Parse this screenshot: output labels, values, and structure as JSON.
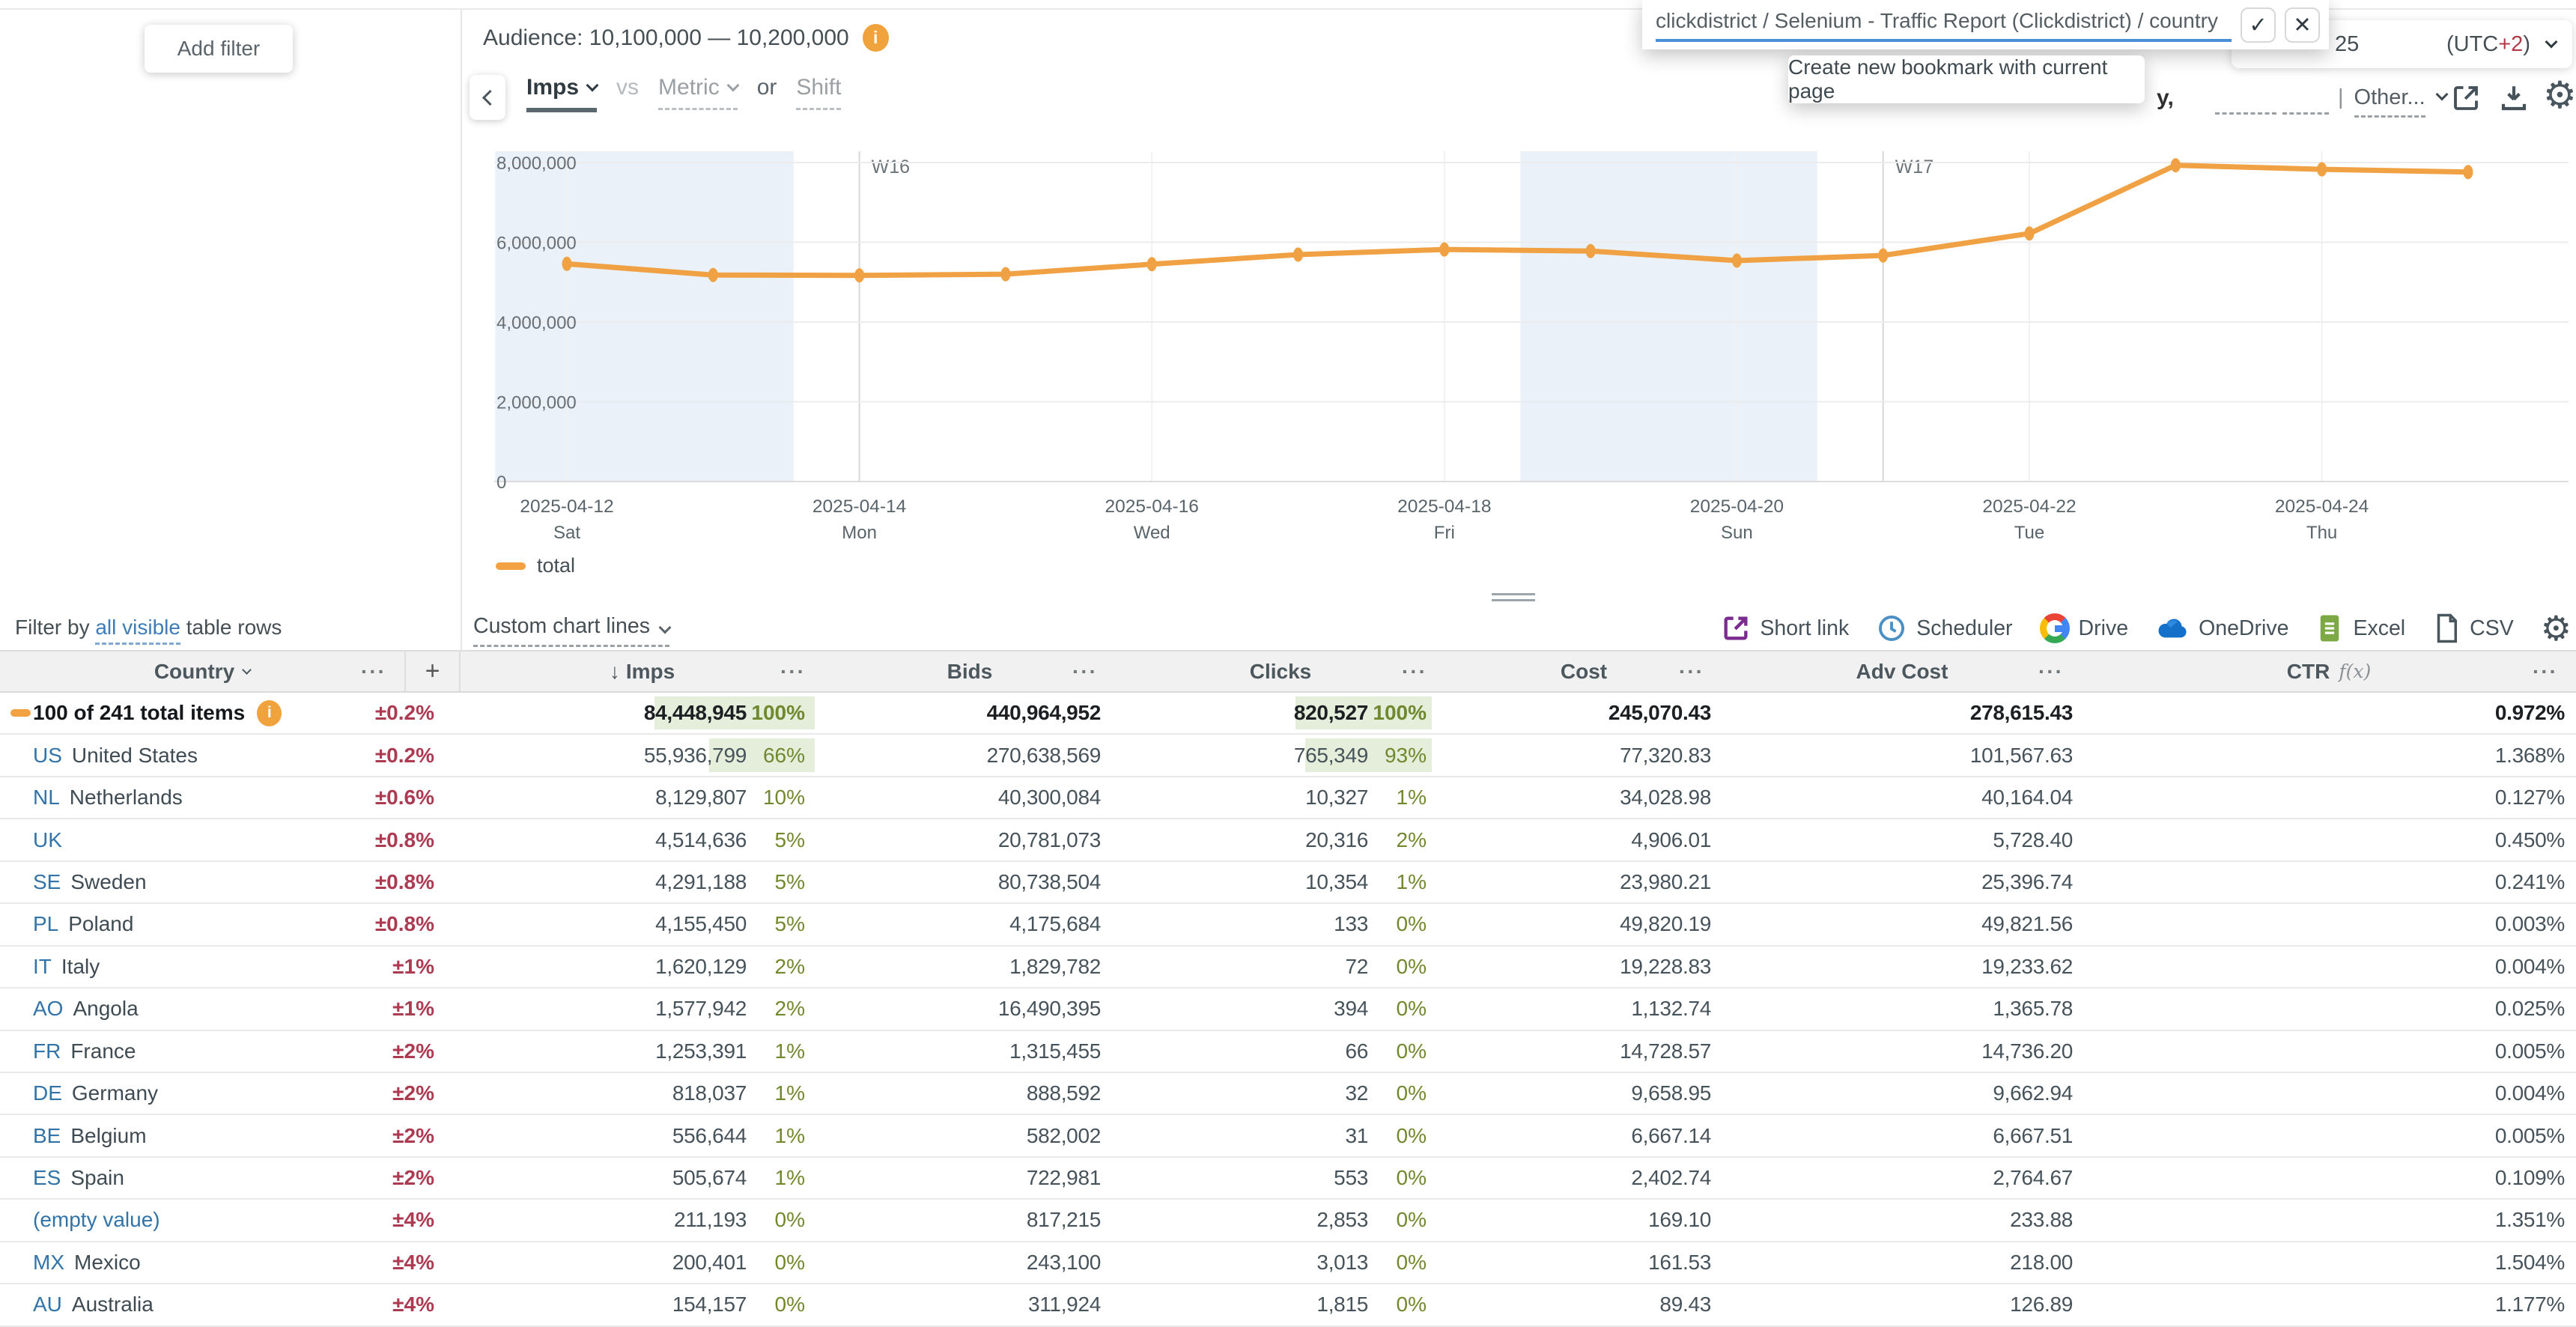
{
  "filter_panel": {
    "add_filter": "Add filter"
  },
  "audience": {
    "label": "Audience: 10,100,000 — 10,200,000",
    "info_icon": "i"
  },
  "metric_bar": {
    "metric": "Imps",
    "vs": "vs",
    "metric_select": "Metric",
    "or": "or",
    "shift": "Shift"
  },
  "bookmark_popup": {
    "value": "clickdistrict / Selenium - Traffic Report (Clickdistrict) / country",
    "confirm_icon": "✓",
    "cancel_icon": "✕",
    "menu_item": "Create new bookmark with current page"
  },
  "datetime_bar": {
    "day": "25",
    "tz_prefix": "(UTC ",
    "tz_offset": "+2",
    "tz_suffix": ")",
    "hidden_fragment": "y,",
    "other_separator": "|",
    "other_label": "Other...",
    "gear_icon": "⚙"
  },
  "chart_data": {
    "type": "line",
    "x": [
      "2025-04-12",
      "2025-04-13",
      "2025-04-14",
      "2025-04-15",
      "2025-04-16",
      "2025-04-17",
      "2025-04-18",
      "2025-04-19",
      "2025-04-20",
      "2025-04-21",
      "2025-04-22",
      "2025-04-23",
      "2025-04-24",
      "2025-04-25"
    ],
    "series": [
      {
        "name": "total",
        "color": "#F0A144",
        "values": [
          5460000,
          5180000,
          5170000,
          5200000,
          5450000,
          5690000,
          5820000,
          5780000,
          5540000,
          5670000,
          6220000,
          7930000,
          7830000,
          7760000
        ]
      }
    ],
    "ylim": [
      0,
      8000000
    ],
    "y_ticks": [
      {
        "label": "0",
        "value": 0
      },
      {
        "label": "2,000,000",
        "value": 2000000
      },
      {
        "label": "4,000,000",
        "value": 4000000
      },
      {
        "label": "6,000,000",
        "value": 6000000
      },
      {
        "label": "8,000,000",
        "value": 8000000
      }
    ],
    "x_ticks": [
      {
        "index": 0,
        "date": "2025-04-12",
        "day": "Sat"
      },
      {
        "index": 2,
        "date": "2025-04-14",
        "day": "Mon"
      },
      {
        "index": 4,
        "date": "2025-04-16",
        "day": "Wed"
      },
      {
        "index": 6,
        "date": "2025-04-18",
        "day": "Fri"
      },
      {
        "index": 8,
        "date": "2025-04-20",
        "day": "Sun"
      },
      {
        "index": 10,
        "date": "2025-04-22",
        "day": "Tue"
      },
      {
        "index": 12,
        "date": "2025-04-24",
        "day": "Thu"
      }
    ],
    "week_markers": [
      {
        "index": 2,
        "label": "W16"
      },
      {
        "index": 9,
        "label": "W17"
      }
    ],
    "weekend_bands": [
      [
        -0.49,
        1.55
      ],
      [
        6.52,
        8.55
      ]
    ],
    "legend": [
      "total"
    ],
    "grid": true,
    "legend_position": "bottom-left"
  },
  "toolbar": {
    "filter_prefix": "Filter by ",
    "filter_link": "all visible",
    "filter_suffix": " table rows",
    "custom_chart_lines": "Custom chart lines",
    "export": [
      {
        "label": "Short link",
        "icon": "short-link-icon"
      },
      {
        "label": "Scheduler",
        "icon": "clock-icon"
      },
      {
        "label": "Drive",
        "icon": "google-drive-icon"
      },
      {
        "label": "OneDrive",
        "icon": "onedrive-cloud-icon"
      },
      {
        "label": "Excel",
        "icon": "excel-file-icon"
      },
      {
        "label": "CSV",
        "icon": "csv-file-icon"
      }
    ],
    "gear_icon": "⚙"
  },
  "table": {
    "columns": {
      "country": "Country",
      "plus": "+",
      "sort": "↓",
      "imps": "Imps",
      "bids": "Bids",
      "clicks": "Clicks",
      "cost": "Cost",
      "adv": "Adv Cost",
      "ctr": "CTR",
      "fx": "f(x)",
      "menu": "···"
    },
    "rows": [
      {
        "total": true,
        "info": true,
        "code": "",
        "name": "100 of 241 total items",
        "err": "±0.2%",
        "imps": "84,448,945",
        "imps_pct": "100%",
        "imps_bar": 100,
        "bids": "440,964,952",
        "clicks": "820,527",
        "clicks_pct": "100%",
        "clicks_bar": 100,
        "cost": "245,070.43",
        "adv_cost": "278,615.43",
        "ctr": "0.972%"
      },
      {
        "code": "US",
        "name": "United States",
        "err": "±0.2%",
        "imps": "55,936,799",
        "imps_pct": "66%",
        "imps_bar": 66,
        "bids": "270,638,569",
        "clicks": "765,349",
        "clicks_pct": "93%",
        "clicks_bar": 93,
        "cost": "77,320.83",
        "adv_cost": "101,567.63",
        "ctr": "1.368%"
      },
      {
        "code": "NL",
        "name": "Netherlands",
        "err": "±0.6%",
        "imps": "8,129,807",
        "imps_pct": "10%",
        "imps_bar": 0,
        "bids": "40,300,084",
        "clicks": "10,327",
        "clicks_pct": "1%",
        "clicks_bar": 0,
        "cost": "34,028.98",
        "adv_cost": "40,164.04",
        "ctr": "0.127%"
      },
      {
        "code": "UK",
        "name": "",
        "err": "±0.8%",
        "imps": "4,514,636",
        "imps_pct": "5%",
        "imps_bar": 0,
        "bids": "20,781,073",
        "clicks": "20,316",
        "clicks_pct": "2%",
        "clicks_bar": 0,
        "cost": "4,906.01",
        "adv_cost": "5,728.40",
        "ctr": "0.450%"
      },
      {
        "code": "SE",
        "name": "Sweden",
        "err": "±0.8%",
        "imps": "4,291,188",
        "imps_pct": "5%",
        "imps_bar": 0,
        "bids": "80,738,504",
        "clicks": "10,354",
        "clicks_pct": "1%",
        "clicks_bar": 0,
        "cost": "23,980.21",
        "adv_cost": "25,396.74",
        "ctr": "0.241%"
      },
      {
        "code": "PL",
        "name": "Poland",
        "err": "±0.8%",
        "imps": "4,155,450",
        "imps_pct": "5%",
        "imps_bar": 0,
        "bids": "4,175,684",
        "clicks": "133",
        "clicks_pct": "0%",
        "clicks_bar": 0,
        "cost": "49,820.19",
        "adv_cost": "49,821.56",
        "ctr": "0.003%"
      },
      {
        "code": "IT",
        "name": "Italy",
        "err": "±1%",
        "imps": "1,620,129",
        "imps_pct": "2%",
        "imps_bar": 0,
        "bids": "1,829,782",
        "clicks": "72",
        "clicks_pct": "0%",
        "clicks_bar": 0,
        "cost": "19,228.83",
        "adv_cost": "19,233.62",
        "ctr": "0.004%"
      },
      {
        "code": "AO",
        "name": "Angola",
        "err": "±1%",
        "imps": "1,577,942",
        "imps_pct": "2%",
        "imps_bar": 0,
        "bids": "16,490,395",
        "clicks": "394",
        "clicks_pct": "0%",
        "clicks_bar": 0,
        "cost": "1,132.74",
        "adv_cost": "1,365.78",
        "ctr": "0.025%"
      },
      {
        "code": "FR",
        "name": "France",
        "err": "±2%",
        "imps": "1,253,391",
        "imps_pct": "1%",
        "imps_bar": 0,
        "bids": "1,315,455",
        "clicks": "66",
        "clicks_pct": "0%",
        "clicks_bar": 0,
        "cost": "14,728.57",
        "adv_cost": "14,736.20",
        "ctr": "0.005%"
      },
      {
        "code": "DE",
        "name": "Germany",
        "err": "±2%",
        "imps": "818,037",
        "imps_pct": "1%",
        "imps_bar": 0,
        "bids": "888,592",
        "clicks": "32",
        "clicks_pct": "0%",
        "clicks_bar": 0,
        "cost": "9,658.95",
        "adv_cost": "9,662.94",
        "ctr": "0.004%"
      },
      {
        "code": "BE",
        "name": "Belgium",
        "err": "±2%",
        "imps": "556,644",
        "imps_pct": "1%",
        "imps_bar": 0,
        "bids": "582,002",
        "clicks": "31",
        "clicks_pct": "0%",
        "clicks_bar": 0,
        "cost": "6,667.14",
        "adv_cost": "6,667.51",
        "ctr": "0.005%"
      },
      {
        "code": "ES",
        "name": "Spain",
        "err": "±2%",
        "imps": "505,674",
        "imps_pct": "1%",
        "imps_bar": 0,
        "bids": "722,981",
        "clicks": "553",
        "clicks_pct": "0%",
        "clicks_bar": 0,
        "cost": "2,402.74",
        "adv_cost": "2,764.67",
        "ctr": "0.109%"
      },
      {
        "code": "",
        "name": "(empty value)",
        "err": "±4%",
        "imps": "211,193",
        "imps_pct": "0%",
        "imps_bar": 0,
        "bids": "817,215",
        "clicks": "2,853",
        "clicks_pct": "0%",
        "clicks_bar": 0,
        "cost": "169.10",
        "adv_cost": "233.88",
        "ctr": "1.351%"
      },
      {
        "code": "MX",
        "name": "Mexico",
        "err": "±4%",
        "imps": "200,401",
        "imps_pct": "0%",
        "imps_bar": 0,
        "bids": "243,100",
        "clicks": "3,013",
        "clicks_pct": "0%",
        "clicks_bar": 0,
        "cost": "161.53",
        "adv_cost": "218.00",
        "ctr": "1.504%"
      },
      {
        "code": "AU",
        "name": "Australia",
        "err": "±4%",
        "imps": "154,157",
        "imps_pct": "0%",
        "imps_bar": 0,
        "bids": "311,924",
        "clicks": "1,815",
        "clicks_pct": "0%",
        "clicks_bar": 0,
        "cost": "89.43",
        "adv_cost": "126.89",
        "ctr": "1.177%"
      }
    ]
  }
}
